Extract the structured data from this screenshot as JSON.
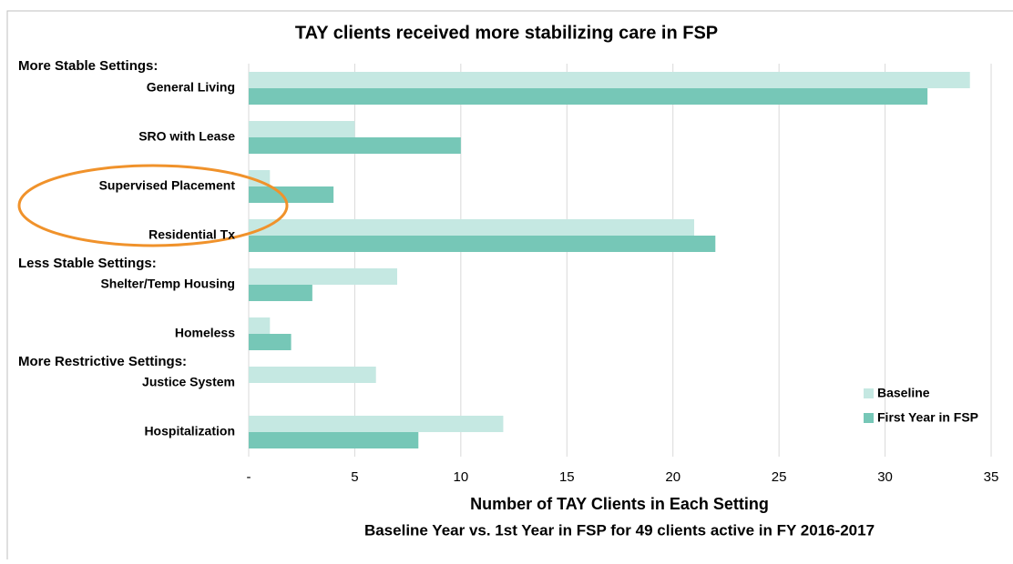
{
  "chart_data": {
    "type": "hbar",
    "title": "TAY clients received more stabilizing care in FSP",
    "x_label": "Number of TAY Clients in Each Setting",
    "subtitle": "Baseline Year vs. 1st Year in FSP for 49 clients active in FY 2016-2017",
    "annotations": [
      "More Stable Settings:",
      "Less Stable Settings:",
      "More Restrictive Settings:"
    ],
    "categories": [
      "General Living",
      "SRO with Lease",
      "Supervised Placement",
      "Residential Tx",
      "Shelter/Temp Housing",
      "Homeless",
      "Justice System",
      "Hospitalization"
    ],
    "series": [
      {
        "name": "Baseline",
        "color": "#c5e8e2",
        "values": [
          34,
          5,
          1,
          21,
          7,
          1,
          6,
          12
        ]
      },
      {
        "name": "First Year in FSP",
        "color": "#76c7b7",
        "values": [
          32,
          10,
          4,
          22,
          3,
          2,
          0,
          8
        ]
      }
    ],
    "xlim": [
      0,
      35
    ],
    "xticks": [
      {
        "value": 0,
        "label": "-"
      },
      5,
      10,
      15,
      20,
      25,
      30,
      35
    ],
    "grid": true,
    "legend": "lower right"
  }
}
